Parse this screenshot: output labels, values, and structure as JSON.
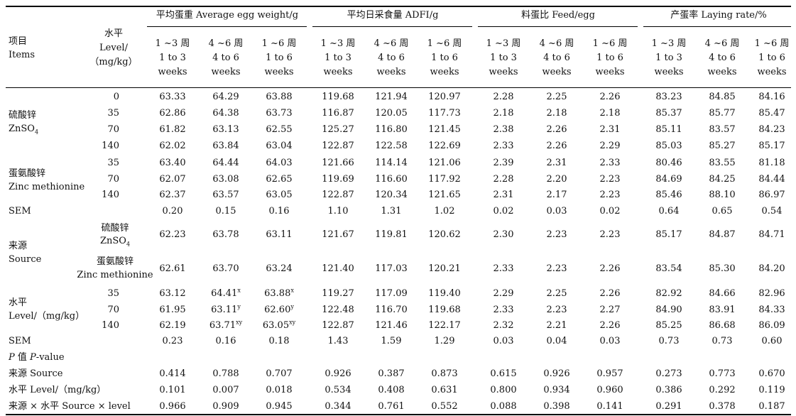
{
  "header": {
    "items_zh": "项目",
    "items_en": "Items",
    "level_zh": "水平",
    "level_en": "Level/",
    "level_unit": "（mg/kg）",
    "groups": [
      "平均蛋重 Average egg weight/g",
      "平均日采食量 ADFI/g",
      "料蛋比 Feed/egg",
      "产蛋率 Laying rate/%"
    ],
    "periods": [
      {
        "zh": "1 ~3 周",
        "l2": "1 to 3",
        "l3": "weeks"
      },
      {
        "zh": "4 ~6 周",
        "l2": "4 to 6",
        "l3": "weeks"
      },
      {
        "zh": "1 ~6 周",
        "l2": "1 to 6",
        "l3": "weeks"
      }
    ]
  },
  "labels": {
    "znso4_zh": "硫酸锌",
    "znso4_en": "ZnSO",
    "znso4_sub": "4",
    "znmet_zh": "蛋氨酸锌",
    "znmet_en": "Zinc methionine",
    "sem": "SEM",
    "source_zh": "来源",
    "source_en": "Source",
    "level_zh": "水平",
    "level_en": "Level/（mg/kg）",
    "pvalue_p": "P",
    "pvalue_mid": "值",
    "pvalue_en_p": "P",
    "pvalue_en_rest": "-value",
    "p_source": "来源 Source",
    "p_level": "水平 Level/（mg/kg）",
    "p_inter": "来源 × 水平 Source × level"
  },
  "rows": {
    "zn_0": {
      "level": "0",
      "v": [
        "63.33",
        "64.29",
        "63.88",
        "119.68",
        "121.94",
        "120.97",
        "2.28",
        "2.25",
        "2.26",
        "83.23",
        "84.85",
        "84.16"
      ]
    },
    "zn_35": {
      "level": "35",
      "v": [
        "62.86",
        "64.38",
        "63.73",
        "116.87",
        "120.05",
        "117.73",
        "2.18",
        "2.18",
        "2.18",
        "85.37",
        "85.77",
        "85.47"
      ]
    },
    "zn_70": {
      "level": "70",
      "v": [
        "61.82",
        "63.13",
        "62.55",
        "125.27",
        "116.80",
        "121.45",
        "2.38",
        "2.26",
        "2.31",
        "85.11",
        "83.57",
        "84.23"
      ]
    },
    "zn_140": {
      "level": "140",
      "v": [
        "62.02",
        "63.84",
        "63.04",
        "122.87",
        "122.58",
        "122.69",
        "2.33",
        "2.26",
        "2.29",
        "85.03",
        "85.27",
        "85.17"
      ]
    },
    "zm_35": {
      "level": "35",
      "v": [
        "63.40",
        "64.44",
        "64.03",
        "121.66",
        "114.14",
        "121.06",
        "2.39",
        "2.31",
        "2.33",
        "80.46",
        "83.55",
        "81.18"
      ]
    },
    "zm_70": {
      "level": "70",
      "v": [
        "62.07",
        "63.08",
        "62.65",
        "119.69",
        "116.60",
        "117.92",
        "2.28",
        "2.20",
        "2.23",
        "84.69",
        "84.25",
        "84.44"
      ]
    },
    "zm_140": {
      "level": "140",
      "v": [
        "62.37",
        "63.57",
        "63.05",
        "122.87",
        "120.34",
        "121.65",
        "2.31",
        "2.17",
        "2.23",
        "85.46",
        "88.10",
        "86.97"
      ]
    },
    "sem1": {
      "v": [
        "0.20",
        "0.15",
        "0.16",
        "1.10",
        "1.31",
        "1.02",
        "0.02",
        "0.03",
        "0.02",
        "0.64",
        "0.65",
        "0.54"
      ]
    },
    "src_zn": {
      "v": [
        "62.23",
        "63.78",
        "63.11",
        "121.67",
        "119.81",
        "120.62",
        "2.30",
        "2.23",
        "2.23",
        "85.17",
        "84.87",
        "84.71"
      ]
    },
    "src_zm": {
      "v": [
        "62.61",
        "63.70",
        "63.24",
        "121.40",
        "117.03",
        "120.21",
        "2.33",
        "2.23",
        "2.26",
        "83.54",
        "85.30",
        "84.20"
      ]
    },
    "lv_35": {
      "level": "35",
      "v": [
        "63.12",
        "64.41",
        "63.88",
        "119.27",
        "117.09",
        "119.40",
        "2.29",
        "2.25",
        "2.26",
        "82.92",
        "84.66",
        "82.96"
      ],
      "sup1": "x",
      "sup2": "x"
    },
    "lv_70": {
      "level": "70",
      "v": [
        "61.95",
        "63.11",
        "62.60",
        "122.48",
        "116.70",
        "119.68",
        "2.33",
        "2.23",
        "2.27",
        "84.90",
        "83.91",
        "84.33"
      ],
      "sup1": "y",
      "sup2": "y"
    },
    "lv_140": {
      "level": "140",
      "v": [
        "62.19",
        "63.71",
        "63.05",
        "122.87",
        "121.46",
        "122.17",
        "2.32",
        "2.21",
        "2.26",
        "85.25",
        "86.68",
        "86.09"
      ],
      "sup1": "xy",
      "sup2": "xy"
    },
    "sem2": {
      "v": [
        "0.23",
        "0.16",
        "0.18",
        "1.43",
        "1.59",
        "1.29",
        "0.03",
        "0.04",
        "0.03",
        "0.73",
        "0.73",
        "0.60"
      ]
    },
    "p_src": {
      "v": [
        "0.414",
        "0.788",
        "0.707",
        "0.926",
        "0.387",
        "0.873",
        "0.615",
        "0.926",
        "0.957",
        "0.273",
        "0.773",
        "0.670"
      ]
    },
    "p_lvl": {
      "v": [
        "0.101",
        "0.007",
        "0.018",
        "0.534",
        "0.408",
        "0.631",
        "0.800",
        "0.934",
        "0.960",
        "0.386",
        "0.292",
        "0.119"
      ]
    },
    "p_int": {
      "v": [
        "0.966",
        "0.909",
        "0.945",
        "0.344",
        "0.761",
        "0.552",
        "0.088",
        "0.398",
        "0.141",
        "0.291",
        "0.378",
        "0.187"
      ]
    }
  }
}
